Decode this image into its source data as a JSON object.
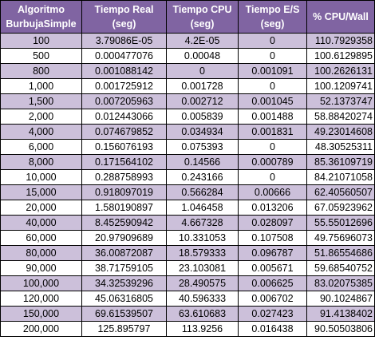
{
  "table": {
    "headers": [
      {
        "line1": "Algoritmo",
        "line2": "BurbujaSimple"
      },
      {
        "line1": "Tiempo Real",
        "line2": "(seg)"
      },
      {
        "line1": "Tiempo CPU",
        "line2": "(seg)"
      },
      {
        "line1": "Tiempo E/S",
        "line2": "(seg)"
      },
      {
        "line1": "% CPU/Wall",
        "line2": ""
      }
    ],
    "rows": [
      [
        "100",
        "3.79086E-05",
        "4.2E-05",
        "0",
        "110.7929358"
      ],
      [
        "500",
        "0.000477076",
        "0.00048",
        "0",
        "100.6129895"
      ],
      [
        "800",
        "0.001088142",
        "0",
        "0.001091",
        "100.2626131"
      ],
      [
        "1,000",
        "0.001725912",
        "0.001728",
        "0",
        "100.1209741"
      ],
      [
        "1,500",
        "0.007205963",
        "0.002712",
        "0.001045",
        "52.1373747"
      ],
      [
        "2,000",
        "0.012443066",
        "0.005839",
        "0.001488",
        "58.88420274"
      ],
      [
        "4,000",
        "0.074679852",
        "0.034934",
        "0.001831",
        "49.23014608"
      ],
      [
        "6,000",
        "0.156076193",
        "0.075393",
        "0",
        "48.30525311"
      ],
      [
        "8,000",
        "0.171564102",
        "0.14566",
        "0.000789",
        "85.36109719"
      ],
      [
        "10,000",
        "0.288758993",
        "0.243166",
        "0",
        "84.21071058"
      ],
      [
        "15,000",
        "0.918097019",
        "0.566284",
        "0.00666",
        "62.40560507"
      ],
      [
        "20,000",
        "1.580190897",
        "1.046458",
        "0.013206",
        "67.05923962"
      ],
      [
        "40,000",
        "8.452590942",
        "4.667328",
        "0.028097",
        "55.55012696"
      ],
      [
        "60,000",
        "20.97909689",
        "10.331053",
        "0.107508",
        "49.75696073"
      ],
      [
        "80,000",
        "36.00872087",
        "18.579333",
        "0.096787",
        "51.86554686"
      ],
      [
        "90,000",
        "38.71759105",
        "23.103081",
        "0.005671",
        "59.68540752"
      ],
      [
        "100,000",
        "34.32539296",
        "28.490575",
        "0.006625",
        "83.02075385"
      ],
      [
        "120,000",
        "45.06316805",
        "40.596333",
        "0.006702",
        "90.1024867"
      ],
      [
        "150,000",
        "69.61539507",
        "63.610683",
        "0.027423",
        "91.4138402"
      ],
      [
        "200,000",
        "125.895797",
        "113.9256",
        "0.016438",
        "90.50503806"
      ]
    ]
  },
  "colors": {
    "header_bg": "#8064a2",
    "header_text": "#ffffff",
    "band_row": "#ccc0da",
    "plain_row": "#ffffff",
    "border": "#000000"
  }
}
